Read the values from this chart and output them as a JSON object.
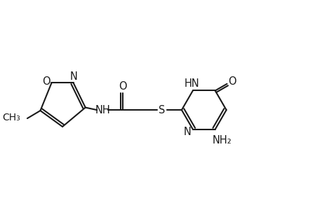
{
  "bg_color": "#ffffff",
  "line_color": "#1a1a1a",
  "line_width": 1.5,
  "font_size": 10.5,
  "font_family": "DejaVu Sans",
  "xlim": [
    0,
    10
  ],
  "ylim": [
    0,
    6.5
  ]
}
